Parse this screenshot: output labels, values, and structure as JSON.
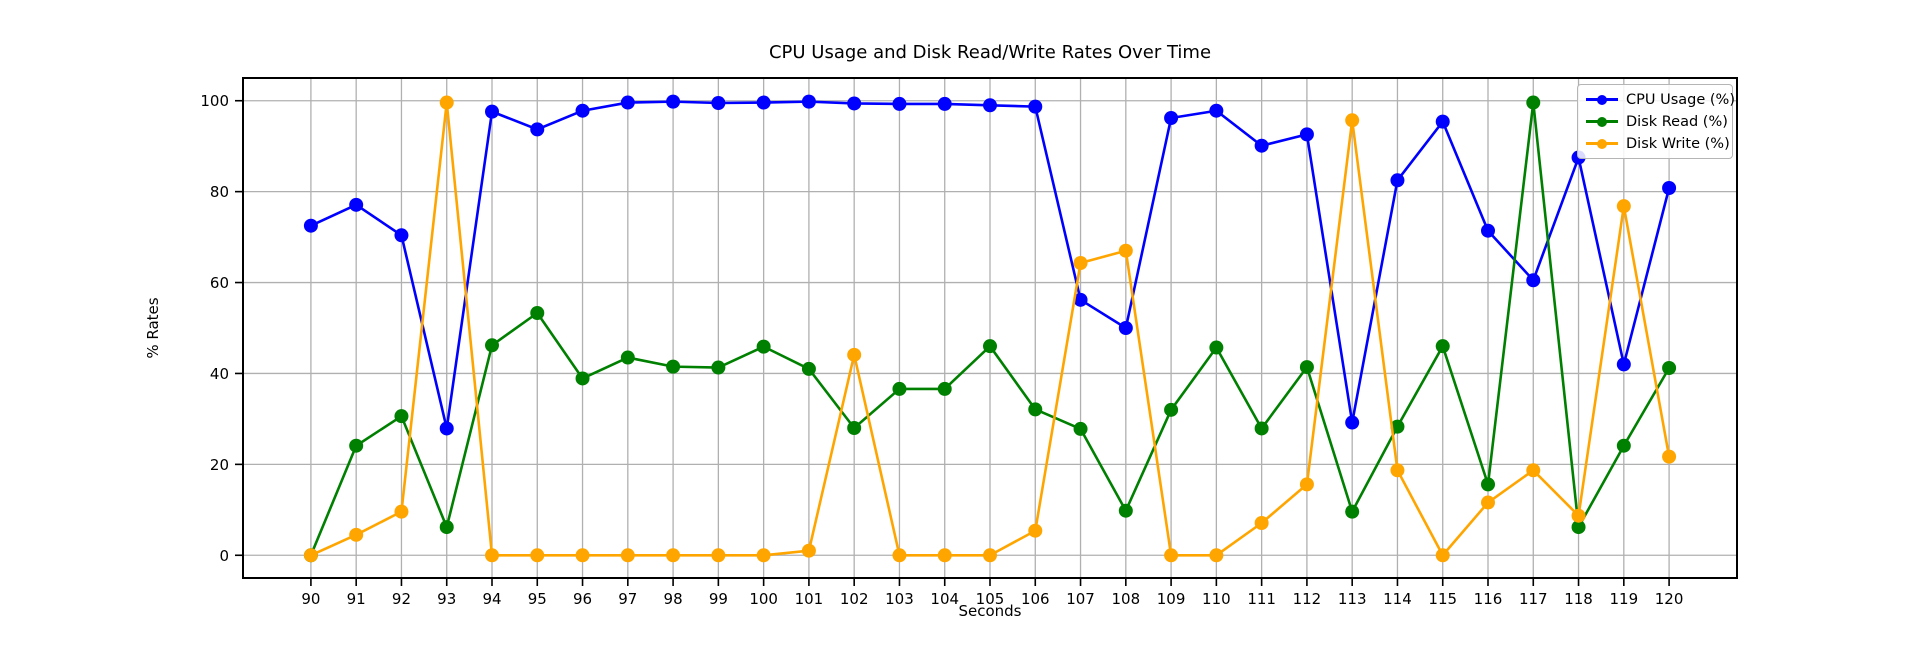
{
  "chart_data": {
    "type": "line",
    "title": "CPU Usage and Disk Read/Write Rates Over Time",
    "xlabel": "Seconds",
    "ylabel": "% Rates",
    "x": [
      90,
      91,
      92,
      93,
      94,
      95,
      96,
      97,
      98,
      99,
      100,
      101,
      102,
      103,
      104,
      105,
      106,
      107,
      108,
      109,
      110,
      111,
      112,
      113,
      114,
      115,
      116,
      117,
      118,
      119,
      120
    ],
    "series": [
      {
        "name": "CPU Usage (%)",
        "color": "#0000ff",
        "values": [
          72.5,
          77.1,
          70.4,
          27.9,
          97.6,
          93.7,
          97.8,
          99.6,
          99.8,
          99.5,
          99.6,
          99.8,
          99.4,
          99.3,
          99.3,
          99.0,
          98.7,
          56.2,
          50.0,
          96.2,
          97.8,
          90.1,
          92.6,
          29.2,
          82.5,
          95.4,
          71.4,
          60.5,
          87.5,
          42.0,
          80.8
        ]
      },
      {
        "name": "Disk Read (%)",
        "color": "#008000",
        "values": [
          0.0,
          24.1,
          30.6,
          6.2,
          46.2,
          53.3,
          38.9,
          43.5,
          41.5,
          41.3,
          45.9,
          41.0,
          28.0,
          36.6,
          36.6,
          46.0,
          32.1,
          27.8,
          9.8,
          32.0,
          45.7,
          27.9,
          41.4,
          9.6,
          28.3,
          46.0,
          15.6,
          99.6,
          6.2,
          24.1,
          41.2
        ]
      },
      {
        "name": "Disk Write (%)",
        "color": "#ffa500",
        "values": [
          0.0,
          4.5,
          9.6,
          99.6,
          0.0,
          0.0,
          0.0,
          0.0,
          0.0,
          0.0,
          0.0,
          1.0,
          44.1,
          0.0,
          0.0,
          0.0,
          5.4,
          64.3,
          67.0,
          0.0,
          0.0,
          7.1,
          15.6,
          95.7,
          18.7,
          0.0,
          11.6,
          18.7,
          8.7,
          76.8,
          21.7
        ]
      }
    ],
    "x_ticks": [
      90,
      91,
      92,
      93,
      94,
      95,
      96,
      97,
      98,
      99,
      100,
      101,
      102,
      103,
      104,
      105,
      106,
      107,
      108,
      109,
      110,
      111,
      112,
      113,
      114,
      115,
      116,
      117,
      118,
      119,
      120
    ],
    "y_ticks": [
      0,
      20,
      40,
      60,
      80,
      100
    ],
    "xlim": [
      88.5,
      121.5
    ],
    "ylim": [
      -5,
      105
    ],
    "grid": true,
    "grid_color": "#b0b0b0",
    "axis_color": "#000000",
    "background_color": "#ffffff",
    "legend_position": "upper right"
  }
}
